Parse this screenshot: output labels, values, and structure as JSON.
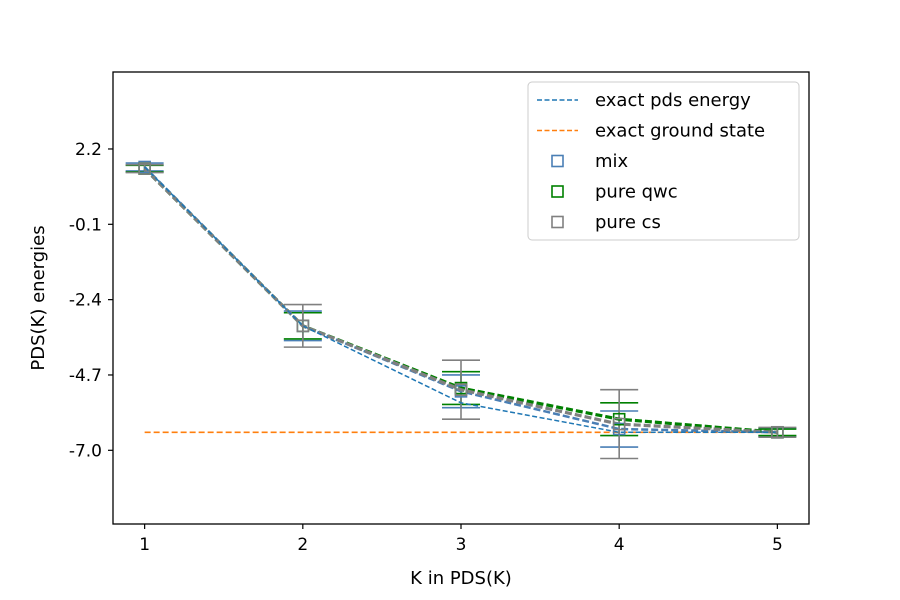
{
  "chart_data": {
    "type": "line",
    "title": "",
    "xlabel": "K in PDS(K)",
    "ylabel": "PDS(K) energies",
    "x": [
      1,
      2,
      3,
      4,
      5
    ],
    "xlim": [
      0.8,
      5.2
    ],
    "ylim": [
      -9.25,
      4.55
    ],
    "xticks": [
      "1",
      "2",
      "3",
      "4",
      "5"
    ],
    "yticks": [
      {
        "value": 2.2,
        "label": "2.2"
      },
      {
        "value": -0.1,
        "label": "-0.1"
      },
      {
        "value": -2.4,
        "label": "-2.4"
      },
      {
        "value": -4.7,
        "label": "-4.7"
      },
      {
        "value": -7.0,
        "label": "-7.0"
      }
    ],
    "grid": false,
    "legend_position": "top-right",
    "exact_pds": {
      "name": "exact pds energy",
      "color": "#1f77b4",
      "values": [
        1.65,
        -3.2,
        -5.55,
        -6.45,
        -6.45
      ]
    },
    "exact_ground": {
      "name": "exact ground state",
      "color": "#ff7f0e",
      "value": -6.45
    },
    "series": [
      {
        "name": "mix",
        "color": "#4a7fb5",
        "values": [
          1.65,
          -3.2,
          -5.2,
          -6.35,
          -6.45
        ],
        "errors": [
          0.12,
          0.45,
          0.5,
          0.55,
          0.12
        ]
      },
      {
        "name": "pure qwc",
        "color": "#008000",
        "values": [
          1.6,
          -3.2,
          -5.1,
          -6.05,
          -6.45
        ],
        "errors": [
          0.1,
          0.4,
          0.5,
          0.5,
          0.1
        ]
      },
      {
        "name": "pure cs",
        "color": "#808080",
        "values": [
          1.6,
          -3.2,
          -5.15,
          -6.2,
          -6.45
        ],
        "errors": [
          0.12,
          0.65,
          0.9,
          1.05,
          0.15
        ]
      }
    ]
  }
}
